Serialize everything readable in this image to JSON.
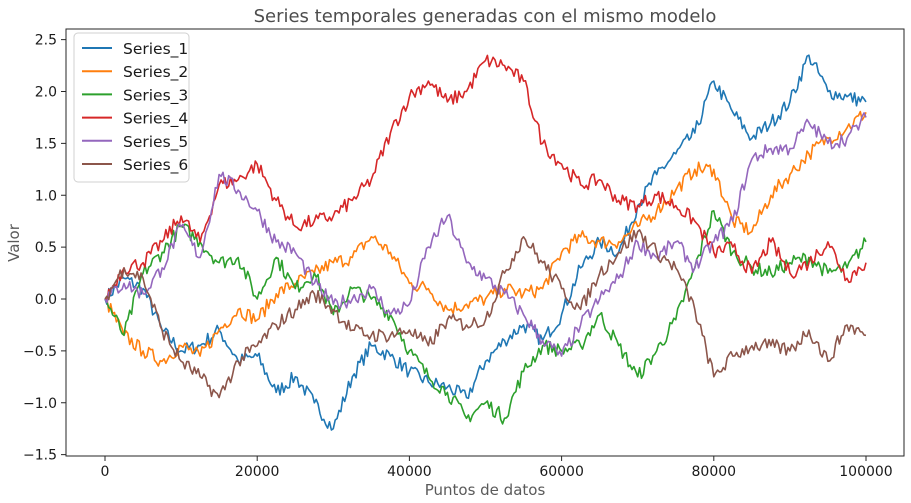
{
  "chart_data": {
    "type": "line",
    "title": "Series temporales generadas con el mismo modelo",
    "xlabel": "Puntos de datos",
    "ylabel": "Valor",
    "xlim": [
      -5000,
      105000
    ],
    "ylim": [
      -1.55,
      2.6
    ],
    "xticks": [
      0,
      20000,
      40000,
      60000,
      80000,
      100000
    ],
    "xtick_labels": [
      "0",
      "20000",
      "40000",
      "60000",
      "80000",
      "100000"
    ],
    "yticks": [
      2.5,
      2.0,
      1.5,
      1.0,
      0.5,
      0.0,
      -0.5,
      -1.0,
      -1.5
    ],
    "ytick_labels": [
      "2.5",
      "2.0",
      "1.5",
      "1.0",
      "0.5",
      "0.0",
      "−0.5",
      "−1.0",
      "−1.5"
    ],
    "grid": false,
    "legend_position": "upper left",
    "x": [
      0,
      2500,
      5000,
      7500,
      10000,
      12500,
      15000,
      17500,
      20000,
      22500,
      25000,
      27500,
      30000,
      32500,
      35000,
      37500,
      40000,
      42500,
      45000,
      47500,
      50000,
      52500,
      55000,
      57500,
      60000,
      62500,
      65000,
      67500,
      70000,
      72500,
      75000,
      77500,
      80000,
      82500,
      85000,
      87500,
      90000,
      92500,
      95000,
      97500,
      100000
    ],
    "series": [
      {
        "name": "Series_1",
        "color": "#1f77b4",
        "values": [
          0.0,
          0.2,
          0.1,
          -0.3,
          -0.5,
          -0.45,
          -0.3,
          -0.6,
          -0.55,
          -0.9,
          -0.75,
          -1.0,
          -1.25,
          -0.75,
          -0.45,
          -0.55,
          -0.7,
          -0.8,
          -0.85,
          -0.95,
          -0.6,
          -0.4,
          -0.25,
          -0.4,
          -0.15,
          0.3,
          0.55,
          0.45,
          0.9,
          1.2,
          1.4,
          1.6,
          2.1,
          1.8,
          1.55,
          1.7,
          1.9,
          2.35,
          2.0,
          1.95,
          1.9
        ]
      },
      {
        "name": "Series_2",
        "color": "#ff7f0e",
        "values": [
          0.0,
          -0.35,
          -0.5,
          -0.6,
          -0.45,
          -0.55,
          -0.3,
          -0.1,
          -0.2,
          0.05,
          0.15,
          0.25,
          0.35,
          0.4,
          0.6,
          0.45,
          0.15,
          0.1,
          -0.1,
          -0.05,
          0.0,
          0.1,
          0.05,
          0.1,
          0.45,
          0.6,
          0.55,
          0.55,
          0.7,
          0.85,
          1.05,
          1.25,
          1.25,
          0.75,
          0.65,
          1.0,
          1.2,
          1.4,
          1.55,
          1.65,
          1.8
        ]
      },
      {
        "name": "Series_3",
        "color": "#2ca02c",
        "values": [
          0.0,
          -0.35,
          0.25,
          0.45,
          0.7,
          0.55,
          0.35,
          0.4,
          0.0,
          0.4,
          0.1,
          0.25,
          -0.15,
          0.1,
          0.0,
          -0.15,
          -0.5,
          -0.75,
          -0.9,
          -1.15,
          -1.0,
          -1.15,
          -0.7,
          -0.45,
          -0.5,
          -0.45,
          -0.15,
          -0.45,
          -0.75,
          -0.5,
          -0.2,
          0.3,
          0.85,
          0.45,
          0.3,
          0.25,
          0.35,
          0.4,
          0.25,
          0.3,
          0.55
        ]
      },
      {
        "name": "Series_4",
        "color": "#d62728",
        "values": [
          0.0,
          0.3,
          0.35,
          0.55,
          0.8,
          0.55,
          1.1,
          1.15,
          1.3,
          0.95,
          0.7,
          0.75,
          0.8,
          0.95,
          1.15,
          1.6,
          1.95,
          2.1,
          1.9,
          2.0,
          2.3,
          2.25,
          2.1,
          1.5,
          1.3,
          1.1,
          1.15,
          0.95,
          0.9,
          1.0,
          0.9,
          0.75,
          0.45,
          0.5,
          0.25,
          0.55,
          0.25,
          0.35,
          0.55,
          0.2,
          0.35
        ]
      },
      {
        "name": "Series_5",
        "color": "#9467bd",
        "values": [
          0.0,
          0.15,
          0.05,
          0.3,
          0.7,
          0.4,
          1.2,
          1.05,
          0.85,
          0.55,
          0.45,
          0.15,
          -0.05,
          0.0,
          0.1,
          -0.15,
          -0.05,
          0.5,
          0.8,
          0.35,
          0.2,
          0.05,
          -0.15,
          -0.4,
          -0.55,
          -0.25,
          0.0,
          0.2,
          0.55,
          0.4,
          0.55,
          0.3,
          0.55,
          0.75,
          1.35,
          1.45,
          1.45,
          1.7,
          1.5,
          1.55,
          1.75
        ]
      },
      {
        "name": "Series_6",
        "color": "#8c564b",
        "values": [
          0.0,
          0.3,
          0.2,
          -0.3,
          -0.6,
          -0.75,
          -0.95,
          -0.6,
          -0.45,
          -0.25,
          -0.1,
          0.05,
          -0.1,
          -0.3,
          -0.35,
          -0.35,
          -0.3,
          -0.45,
          -0.2,
          -0.25,
          -0.2,
          0.25,
          0.6,
          0.35,
          0.1,
          -0.1,
          0.25,
          0.45,
          0.65,
          0.45,
          0.3,
          -0.1,
          -0.75,
          -0.55,
          -0.45,
          -0.45,
          -0.5,
          -0.3,
          -0.6,
          -0.25,
          -0.35
        ]
      }
    ]
  }
}
